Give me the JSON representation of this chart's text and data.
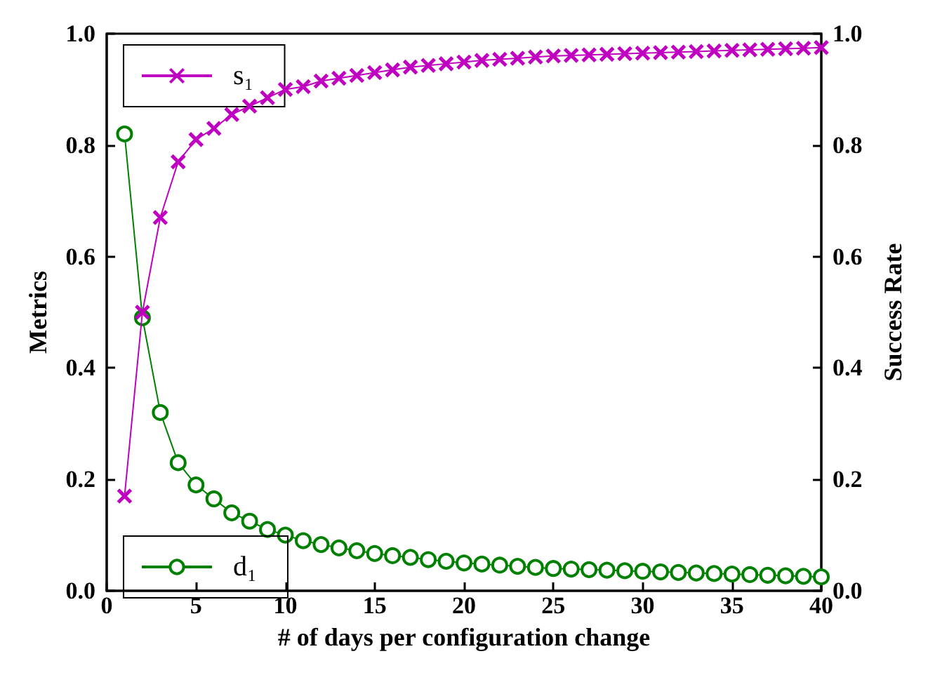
{
  "chart_data": {
    "type": "line",
    "xlabel": "# of days per configuration change",
    "ylabel": "Metrics",
    "y2label": "Success Rate",
    "x": [
      1,
      2,
      3,
      4,
      5,
      6,
      7,
      8,
      9,
      10,
      11,
      12,
      13,
      14,
      15,
      16,
      17,
      18,
      19,
      20,
      21,
      22,
      23,
      24,
      25,
      26,
      27,
      28,
      29,
      30,
      31,
      32,
      33,
      34,
      35,
      36,
      37,
      38,
      39,
      40
    ],
    "series": [
      {
        "name": "s₁",
        "color": "#c000c0",
        "marker": "cross",
        "values": [
          0.17,
          0.5,
          0.67,
          0.77,
          0.81,
          0.83,
          0.855,
          0.87,
          0.885,
          0.9,
          0.905,
          0.915,
          0.92,
          0.925,
          0.93,
          0.935,
          0.94,
          0.943,
          0.946,
          0.949,
          0.952,
          0.954,
          0.956,
          0.958,
          0.96,
          0.961,
          0.962,
          0.963,
          0.964,
          0.965,
          0.966,
          0.967,
          0.968,
          0.969,
          0.97,
          0.971,
          0.972,
          0.973,
          0.974,
          0.975
        ]
      },
      {
        "name": "d₁",
        "color": "#008000",
        "marker": "circle",
        "values": [
          0.82,
          0.49,
          0.32,
          0.23,
          0.19,
          0.165,
          0.14,
          0.125,
          0.11,
          0.1,
          0.09,
          0.083,
          0.077,
          0.072,
          0.067,
          0.063,
          0.06,
          0.056,
          0.053,
          0.05,
          0.048,
          0.046,
          0.044,
          0.042,
          0.04,
          0.039,
          0.038,
          0.037,
          0.036,
          0.035,
          0.034,
          0.033,
          0.032,
          0.031,
          0.03,
          0.029,
          0.028,
          0.027,
          0.026,
          0.025
        ]
      }
    ],
    "xlim": [
      0,
      40
    ],
    "xticks": [
      0,
      5,
      10,
      15,
      20,
      25,
      30,
      35,
      40
    ],
    "ylim": [
      0,
      1
    ],
    "yticks": [
      {
        "value": 0,
        "label": "0.0"
      },
      {
        "value": 0.2,
        "label": "0.2"
      },
      {
        "value": 0.4,
        "label": "0.4"
      },
      {
        "value": 0.6,
        "label": "0.6"
      },
      {
        "value": 0.8,
        "label": "0.8"
      },
      {
        "value": 1,
        "label": "1.0"
      }
    ],
    "y2lim": [
      0,
      1
    ],
    "y2ticks": [
      {
        "value": 0,
        "label": "0.0"
      },
      {
        "value": 0.2,
        "label": "0.2"
      },
      {
        "value": 0.4,
        "label": "0.4"
      },
      {
        "value": 0.6,
        "label": "0.6"
      },
      {
        "value": 0.8,
        "label": "0.8"
      },
      {
        "value": 1,
        "label": "1.0"
      }
    ],
    "grid": false,
    "legend": "left"
  }
}
